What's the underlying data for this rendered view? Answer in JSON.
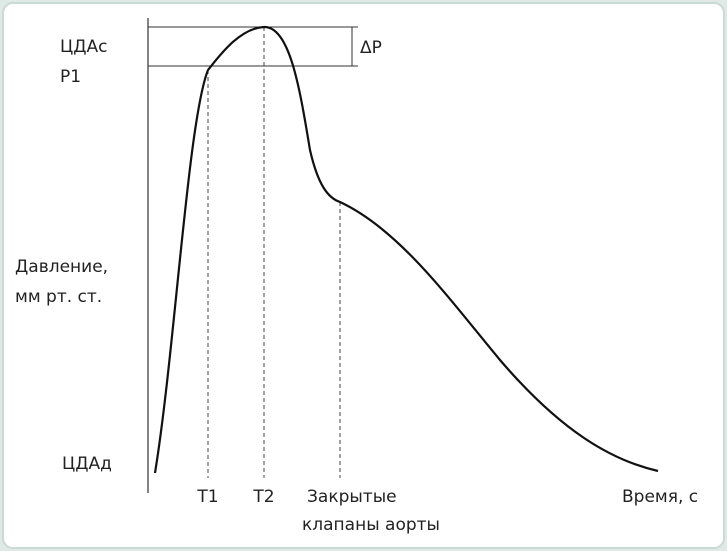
{
  "labels": {
    "sbp": "ЦДАс",
    "p1": "P1",
    "y_axis": [
      "Давление,",
      "мм рт. ст."
    ],
    "dbp": "ЦДАд",
    "delta_p": "ΔP",
    "t1": "T1",
    "t2": "T2",
    "valves": [
      "Закрытые",
      "клапаны аорты"
    ],
    "x_axis": "Время, с"
  }
}
